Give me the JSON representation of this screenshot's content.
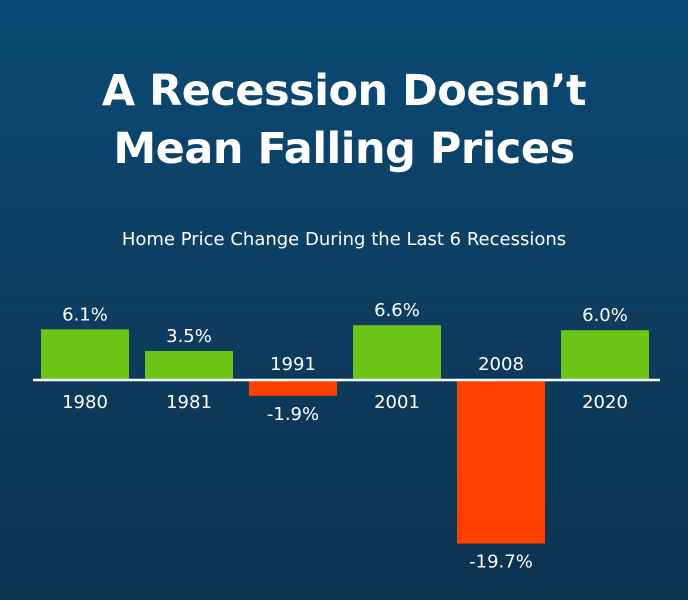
{
  "title_line1": "A Recession Doesn’t",
  "title_line2": "Mean Falling Prices",
  "chart_data": {
    "type": "bar",
    "title": "A Recession Doesn’t Mean Falling Prices",
    "subtitle": "Home Price Change During the Last 6 Recessions",
    "categories": [
      "1980",
      "1981",
      "1991",
      "2001",
      "2008",
      "2020"
    ],
    "values": [
      6.1,
      3.5,
      -1.9,
      6.6,
      -19.7,
      6.0
    ],
    "value_labels": [
      "6.1%",
      "3.5%",
      "-1.9%",
      "6.6%",
      "-19.7%",
      "6.0%"
    ],
    "unit": "%",
    "colors": {
      "positive": "#6cc417",
      "negative": "#ff4000",
      "axis": "#ffffff",
      "background_top": "#0a4a75",
      "background_bottom": "#0b324f"
    },
    "grid": false,
    "legend": "none"
  }
}
